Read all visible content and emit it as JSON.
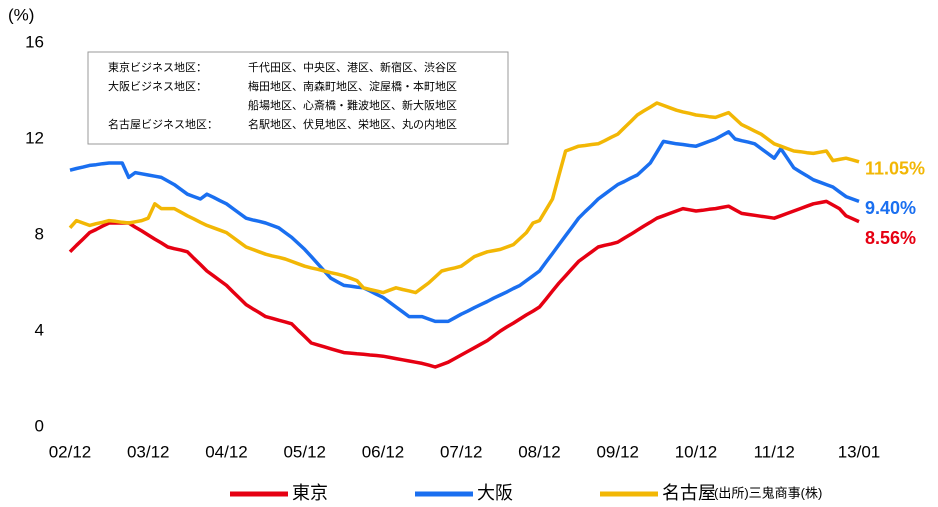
{
  "chart_data": {
    "type": "line",
    "y_unit": "(%)",
    "ylim": [
      0,
      16
    ],
    "yticks": [
      0,
      4,
      8,
      12,
      16
    ],
    "grid": false,
    "legend": "bottom",
    "source": "(出所)三鬼商事(株)",
    "notes": [
      {
        "label": "東京ビジネス地区：",
        "text": "千代田区、中央区、港区、新宿区、渋谷区"
      },
      {
        "label": "大阪ビジネス地区：",
        "text": "梅田地区、南森町地区、淀屋橋・本町地区"
      },
      {
        "text": "船場地区、心斎橋・難波地区、新大阪地区"
      },
      {
        "label": "名古屋ビジネス地区：",
        "text": "名駅地区、伏見地区、栄地区、丸の内地区"
      }
    ],
    "categories": [
      "02/12",
      null,
      null,
      null,
      null,
      null,
      null,
      null,
      null,
      null,
      null,
      null,
      "03/12",
      null,
      null,
      null,
      null,
      null,
      null,
      null,
      null,
      null,
      null,
      null,
      "04/12",
      null,
      null,
      null,
      null,
      null,
      null,
      null,
      null,
      null,
      null,
      null,
      "05/12",
      null,
      null,
      null,
      null,
      null,
      null,
      null,
      null,
      null,
      null,
      null,
      "06/12",
      null,
      null,
      null,
      null,
      null,
      null,
      null,
      null,
      null,
      null,
      null,
      "07/12",
      null,
      null,
      null,
      null,
      null,
      null,
      null,
      null,
      null,
      null,
      null,
      "08/12",
      null,
      null,
      null,
      null,
      null,
      null,
      null,
      null,
      null,
      null,
      null,
      "09/12",
      null,
      null,
      null,
      null,
      null,
      null,
      null,
      null,
      null,
      null,
      null,
      "10/12",
      null,
      null,
      null,
      null,
      null,
      null,
      null,
      null,
      null,
      null,
      null,
      "11/12",
      null,
      null,
      null,
      null,
      null,
      null,
      null,
      null,
      null,
      null,
      null,
      null,
      "13/01"
    ],
    "series": [
      {
        "name": "東京",
        "color": "#e60012",
        "end_label": "8.56%",
        "values": [
          7.3,
          7.57,
          7.83,
          8.1,
          8.23,
          8.37,
          8.5,
          8.5,
          8.5,
          8.5,
          8.33,
          8.17,
          8.0,
          7.83,
          7.67,
          7.5,
          7.43,
          7.37,
          7.3,
          7.03,
          6.77,
          6.5,
          6.3,
          6.1,
          5.9,
          5.63,
          5.37,
          5.1,
          4.93,
          4.77,
          4.6,
          4.53,
          4.45,
          4.38,
          4.3,
          4.03,
          3.77,
          3.5,
          3.42,
          3.34,
          3.26,
          3.18,
          3.1,
          3.08,
          3.05,
          3.03,
          3.0,
          2.98,
          2.95,
          2.9,
          2.85,
          2.8,
          2.75,
          2.7,
          2.65,
          2.58,
          2.5,
          2.6,
          2.7,
          2.85,
          3.0,
          3.15,
          3.3,
          3.45,
          3.6,
          3.8,
          4.0,
          4.17,
          4.33,
          4.5,
          4.67,
          4.83,
          5.0,
          5.33,
          5.67,
          6.0,
          6.3,
          6.6,
          6.9,
          7.1,
          7.3,
          7.5,
          7.57,
          7.63,
          7.7,
          7.87,
          8.03,
          8.2,
          8.37,
          8.53,
          8.7,
          8.8,
          8.9,
          9.0,
          9.1,
          9.05,
          9.0,
          9.03,
          9.07,
          9.1,
          9.15,
          9.2,
          9.05,
          8.9,
          8.86,
          8.82,
          8.78,
          8.74,
          8.7,
          8.8,
          8.9,
          9.0,
          9.1,
          9.2,
          9.3,
          9.35,
          9.4,
          9.25,
          9.1,
          8.8,
          8.68,
          8.56
        ]
      },
      {
        "name": "大阪",
        "color": "#1a6ff0",
        "end_label": "9.40%",
        "values": [
          10.7,
          10.77,
          10.83,
          10.9,
          10.93,
          10.97,
          11.0,
          11.0,
          11.0,
          10.4,
          10.6,
          10.55,
          10.5,
          10.45,
          10.4,
          10.25,
          10.1,
          9.9,
          9.7,
          9.6,
          9.5,
          9.7,
          9.57,
          9.43,
          9.3,
          9.1,
          8.9,
          8.7,
          8.63,
          8.57,
          8.5,
          8.4,
          8.3,
          8.1,
          7.9,
          7.65,
          7.4,
          7.1,
          6.8,
          6.5,
          6.2,
          6.05,
          5.9,
          5.87,
          5.83,
          5.8,
          5.67,
          5.53,
          5.4,
          5.2,
          5.0,
          4.8,
          4.6,
          4.6,
          4.6,
          4.5,
          4.4,
          4.4,
          4.4,
          4.55,
          4.7,
          4.83,
          4.97,
          5.1,
          5.23,
          5.37,
          5.5,
          5.63,
          5.77,
          5.9,
          6.1,
          6.3,
          6.5,
          6.87,
          7.23,
          7.6,
          7.97,
          8.33,
          8.7,
          8.97,
          9.23,
          9.5,
          9.7,
          9.9,
          10.1,
          10.23,
          10.37,
          10.5,
          10.75,
          11.0,
          11.45,
          11.9,
          11.85,
          11.8,
          11.77,
          11.73,
          11.7,
          11.8,
          11.9,
          12.0,
          12.15,
          12.3,
          12.0,
          11.93,
          11.87,
          11.8,
          11.6,
          11.4,
          11.2,
          11.6,
          11.2,
          10.8,
          10.63,
          10.47,
          10.3,
          10.2,
          10.1,
          10.0,
          9.8,
          9.6,
          9.5,
          9.4
        ]
      },
      {
        "name": "名古屋",
        "color": "#f2b705",
        "end_label": "11.05%",
        "values": [
          8.3,
          8.6,
          8.5,
          8.4,
          8.47,
          8.53,
          8.6,
          8.57,
          8.53,
          8.5,
          8.55,
          8.6,
          8.7,
          9.3,
          9.1,
          9.1,
          9.1,
          8.95,
          8.8,
          8.67,
          8.53,
          8.4,
          8.3,
          8.2,
          8.1,
          7.9,
          7.7,
          7.5,
          7.4,
          7.3,
          7.2,
          7.13,
          7.07,
          7.0,
          6.9,
          6.8,
          6.7,
          6.63,
          6.57,
          6.5,
          6.43,
          6.37,
          6.3,
          6.2,
          6.1,
          5.8,
          5.73,
          5.67,
          5.6,
          5.7,
          5.8,
          5.73,
          5.67,
          5.6,
          5.8,
          6.0,
          6.25,
          6.5,
          6.57,
          6.63,
          6.7,
          6.9,
          7.1,
          7.2,
          7.3,
          7.35,
          7.4,
          7.5,
          7.6,
          7.85,
          8.1,
          8.5,
          8.6,
          9.05,
          9.5,
          10.5,
          11.5,
          11.6,
          11.7,
          11.73,
          11.77,
          11.8,
          11.93,
          12.07,
          12.2,
          12.47,
          12.73,
          13.0,
          13.17,
          13.33,
          13.5,
          13.4,
          13.3,
          13.2,
          13.13,
          13.07,
          13.0,
          12.97,
          12.93,
          12.9,
          13.0,
          13.1,
          12.85,
          12.6,
          12.47,
          12.33,
          12.2,
          12.0,
          11.8,
          11.7,
          11.6,
          11.5,
          11.47,
          11.43,
          11.4,
          11.45,
          11.5,
          11.1,
          11.15,
          11.2,
          11.13,
          11.05
        ]
      }
    ]
  }
}
